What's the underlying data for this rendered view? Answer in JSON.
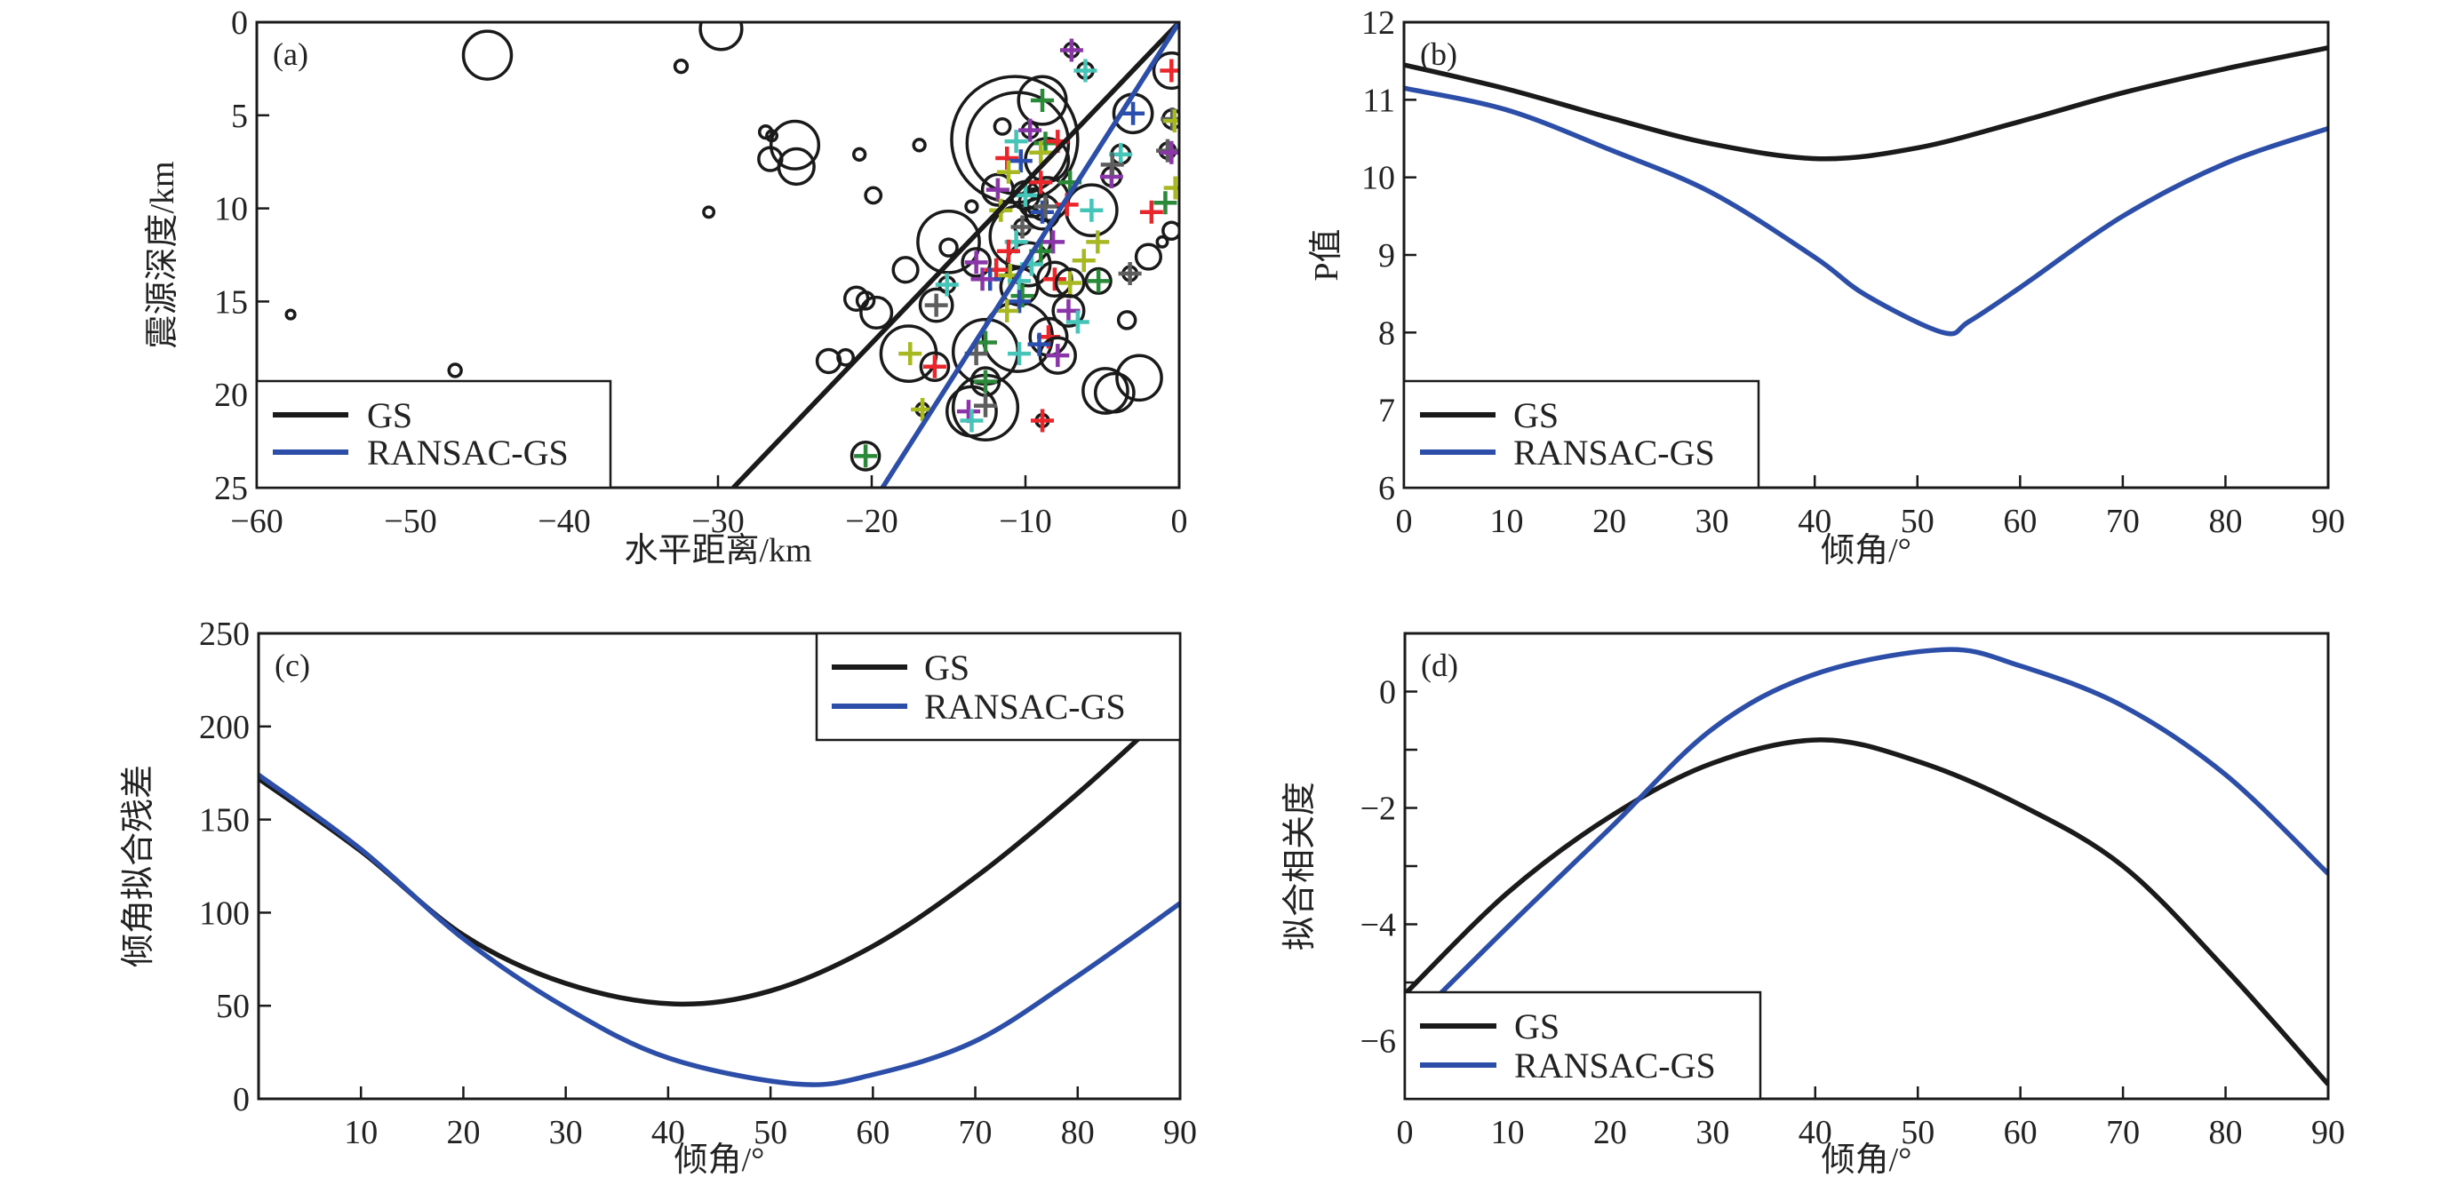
{
  "colors": {
    "GS": "#1a1a1a",
    "RANSAC-GS": "#2c4ea8",
    "cross": {
      "red": "#e8262b",
      "green": "#2a8a3a",
      "blue": "#2b4fb0",
      "purple": "#8a35a8",
      "cyan": "#45c4b8",
      "yellow": "#a8b820",
      "gray": "#5e5e5e"
    }
  },
  "chart_data": [
    {
      "type": "scatter",
      "panel_label": "(a)",
      "xlabel": "水平距离/km",
      "ylabel": "震源深度/km",
      "xlim": [
        -60,
        0
      ],
      "ylim": [
        0,
        25
      ],
      "y_inverted": true,
      "xticks": [
        -60,
        -50,
        -40,
        -30,
        -20,
        -10,
        0
      ],
      "xtick_labels": [
        "−60",
        "−50",
        "−40",
        "−30",
        "−20",
        "−10",
        "0"
      ],
      "yticks": [
        0,
        5,
        10,
        15,
        20,
        25
      ],
      "ytick_labels": [
        "0",
        "5",
        "10",
        "15",
        "20",
        "25"
      ],
      "legend": {
        "position": "bottom-left",
        "entries": [
          "GS",
          "RANSAC-GS"
        ]
      },
      "series": [
        {
          "name": "GS",
          "type": "line",
          "x": [
            0,
            -29.0
          ],
          "y": [
            0,
            25
          ]
        },
        {
          "name": "RANSAC-GS",
          "type": "line",
          "x": [
            0,
            -19.3
          ],
          "y": [
            0,
            25
          ]
        }
      ],
      "events_fields": [
        "x_km",
        "depth_km",
        "circle_radius_km",
        "cross_color"
      ],
      "events": [
        [
          -45.0,
          1.77,
          1.56,
          ""
        ],
        [
          -29.8,
          0.35,
          1.35,
          ""
        ],
        [
          -32.4,
          2.37,
          0.4,
          ""
        ],
        [
          -57.8,
          15.7,
          0.28,
          ""
        ],
        [
          -47.1,
          18.7,
          0.4,
          ""
        ],
        [
          -26.9,
          5.9,
          0.4,
          ""
        ],
        [
          -26.5,
          6.1,
          0.33,
          ""
        ],
        [
          -25.0,
          6.6,
          1.55,
          ""
        ],
        [
          -26.6,
          7.35,
          0.75,
          ""
        ],
        [
          -24.9,
          7.75,
          1.15,
          ""
        ],
        [
          -20.8,
          7.1,
          0.37,
          ""
        ],
        [
          -16.9,
          6.6,
          0.37,
          ""
        ],
        [
          -19.9,
          9.3,
          0.5,
          ""
        ],
        [
          -30.6,
          10.2,
          0.33,
          ""
        ],
        [
          -13.5,
          9.9,
          0.37,
          ""
        ],
        [
          -15.0,
          11.8,
          2.0,
          ""
        ],
        [
          -15.0,
          12.1,
          0.55,
          ""
        ],
        [
          -17.8,
          13.3,
          0.8,
          ""
        ],
        [
          -21.0,
          14.85,
          0.75,
          ""
        ],
        [
          -20.4,
          14.95,
          0.55,
          ""
        ],
        [
          -19.7,
          15.6,
          1.0,
          ""
        ],
        [
          -22.8,
          18.2,
          0.75,
          ""
        ],
        [
          -21.7,
          18.0,
          0.5,
          ""
        ],
        [
          -17.6,
          17.8,
          1.8,
          ""
        ],
        [
          -3.4,
          16.0,
          0.55,
          ""
        ],
        [
          -2.0,
          12.6,
          0.8,
          ""
        ],
        [
          -1.1,
          11.8,
          0.33,
          ""
        ],
        [
          -0.5,
          11.2,
          0.55,
          ""
        ],
        [
          -4.8,
          19.8,
          1.45,
          ""
        ],
        [
          -2.6,
          19.1,
          1.45,
          ""
        ],
        [
          -4.2,
          19.9,
          1.25,
          ""
        ],
        [
          -10.7,
          6.3,
          4.1,
          ""
        ],
        [
          -10.5,
          6.5,
          3.3,
          ""
        ],
        [
          -11.5,
          5.6,
          0.5,
          ""
        ],
        [
          -12.6,
          20.7,
          2.1,
          ""
        ],
        [
          -13.5,
          20.9,
          1.6,
          ""
        ],
        [
          -12.6,
          17.7,
          2.1,
          ""
        ],
        [
          -10.5,
          16.9,
          2.25,
          ""
        ],
        [
          -10.4,
          14.2,
          1.2,
          ""
        ],
        [
          -8.6,
          9.5,
          1.4,
          ""
        ],
        [
          -9.5,
          9.7,
          0.9,
          ""
        ],
        [
          -8.6,
          7.4,
          1.4,
          ""
        ],
        [
          -10.3,
          11.5,
          2.0,
          ""
        ],
        [
          -9.8,
          13.0,
          1.4,
          ""
        ],
        [
          -8.9,
          4.2,
          1.55,
          "green"
        ],
        [
          -5.7,
          10.1,
          1.65,
          "cyan"
        ],
        [
          -3.0,
          4.9,
          1.25,
          "blue"
        ],
        [
          -0.5,
          2.6,
          1.15,
          "red"
        ],
        [
          -8.1,
          13.8,
          1.1,
          "red"
        ],
        [
          -7.1,
          14.0,
          0.9,
          "yellow"
        ],
        [
          -5.25,
          13.9,
          0.8,
          "green"
        ],
        [
          -7.2,
          15.5,
          1.0,
          "purple"
        ],
        [
          -8.5,
          16.9,
          1.2,
          "red"
        ],
        [
          -7.9,
          17.9,
          1.15,
          "purple"
        ],
        [
          -15.8,
          15.2,
          1.05,
          "gray"
        ],
        [
          -15.9,
          18.5,
          0.9,
          "red"
        ],
        [
          -20.4,
          23.3,
          0.9,
          "green"
        ],
        [
          -7.0,
          1.5,
          0.45,
          "purple"
        ],
        [
          -6.1,
          2.6,
          0.5,
          "cyan"
        ],
        [
          -16.7,
          20.8,
          0.4,
          "yellow"
        ],
        [
          -8.9,
          21.4,
          0.4,
          "red"
        ],
        [
          -0.45,
          5.2,
          0.6,
          "gray"
        ],
        [
          -0.75,
          6.9,
          0.5,
          "gray"
        ],
        [
          -3.8,
          7.1,
          0.6,
          "cyan"
        ],
        [
          -4.4,
          8.3,
          0.6,
          "purple"
        ],
        [
          -10.2,
          11.0,
          0.5,
          "gray"
        ],
        [
          -3.2,
          13.5,
          0.45,
          "gray"
        ],
        [
          -12.6,
          19.3,
          0.9,
          "green"
        ],
        [
          -8.9,
          10.2,
          1.1,
          "blue"
        ],
        [
          -11.8,
          9.0,
          1.0,
          "purple"
        ],
        [
          -10.0,
          9.3,
          0.9,
          "cyan"
        ],
        [
          -9.7,
          5.8,
          0.5,
          "purple"
        ],
        [
          -13.2,
          12.9,
          0.9,
          "purple"
        ],
        [
          -15.1,
          14.1,
          0.5,
          "cyan"
        ],
        [
          -0.3,
          5.3,
          0,
          "yellow"
        ],
        [
          -10.6,
          6.4,
          0,
          "cyan"
        ],
        [
          -8.7,
          6.5,
          0,
          "green"
        ],
        [
          -7.9,
          6.4,
          0,
          "red"
        ],
        [
          -9.0,
          7.0,
          0,
          "yellow"
        ],
        [
          -11.2,
          7.3,
          0,
          "red"
        ],
        [
          -10.3,
          7.45,
          0,
          "blue"
        ],
        [
          -4.35,
          7.65,
          0,
          "gray"
        ],
        [
          -0.5,
          7.0,
          0,
          "purple"
        ],
        [
          -11.1,
          8.05,
          0,
          "yellow"
        ],
        [
          -9.0,
          8.6,
          0,
          "red"
        ],
        [
          -7.1,
          8.6,
          0,
          "green"
        ],
        [
          -7.3,
          9.8,
          0,
          "red"
        ],
        [
          -8.7,
          9.9,
          0,
          "gray"
        ],
        [
          -11.6,
          10.1,
          0,
          "yellow"
        ],
        [
          -1.8,
          10.2,
          0,
          "red"
        ],
        [
          -0.9,
          9.7,
          0,
          "green"
        ],
        [
          -0.25,
          8.9,
          0,
          "yellow"
        ],
        [
          -8.2,
          11.8,
          0,
          "purple"
        ],
        [
          -5.3,
          11.8,
          0,
          "yellow"
        ],
        [
          -10.6,
          11.8,
          0,
          "cyan"
        ],
        [
          -11.1,
          12.3,
          0,
          "red"
        ],
        [
          -9.0,
          12.3,
          0,
          "green"
        ],
        [
          -6.2,
          12.8,
          0,
          "yellow"
        ],
        [
          -11.9,
          13.3,
          0,
          "red"
        ],
        [
          -12.3,
          13.8,
          0,
          "blue"
        ],
        [
          -12.8,
          13.8,
          0,
          "purple"
        ],
        [
          -9.6,
          13.0,
          0,
          "cyan"
        ],
        [
          -11.0,
          13.6,
          0,
          "yellow"
        ],
        [
          -10.4,
          13.9,
          0,
          "cyan"
        ],
        [
          -10.2,
          14.7,
          0,
          "green"
        ],
        [
          -10.4,
          15.0,
          0,
          "blue"
        ],
        [
          -11.2,
          15.5,
          0,
          "yellow"
        ],
        [
          -6.6,
          16.1,
          0,
          "cyan"
        ],
        [
          -9.1,
          17.3,
          0,
          "blue"
        ],
        [
          -12.6,
          17.2,
          0,
          "green"
        ],
        [
          -13.2,
          17.8,
          0,
          "gray"
        ],
        [
          -10.4,
          17.8,
          0,
          "cyan"
        ],
        [
          -17.5,
          17.8,
          0,
          "yellow"
        ],
        [
          -12.6,
          20.6,
          0,
          "gray"
        ],
        [
          -13.7,
          20.9,
          0,
          "purple"
        ],
        [
          -13.5,
          21.4,
          0,
          "cyan"
        ]
      ]
    },
    {
      "type": "line",
      "panel_label": "(b)",
      "xlabel": "倾角/°",
      "ylabel": "P值",
      "xlim": [
        0,
        90
      ],
      "ylim": [
        6,
        12
      ],
      "xticks": [
        0,
        10,
        20,
        30,
        40,
        50,
        60,
        70,
        80,
        90
      ],
      "xtick_labels": [
        "0",
        "10",
        "20",
        "30",
        "40",
        "50",
        "60",
        "70",
        "80",
        "90"
      ],
      "yticks": [
        6,
        7,
        8,
        9,
        10,
        11,
        12
      ],
      "ytick_labels": [
        "6",
        "7",
        "8",
        "9",
        "10",
        "11",
        "12"
      ],
      "legend": {
        "position": "bottom-left",
        "entries": [
          "GS",
          "RANSAC-GS"
        ]
      },
      "series": [
        {
          "name": "GS",
          "x": [
            0,
            10,
            20,
            30,
            40.5,
            50,
            60,
            70,
            80,
            90
          ],
          "y": [
            11.45,
            11.14,
            10.77,
            10.43,
            10.24,
            10.38,
            10.72,
            11.09,
            11.4,
            11.67
          ]
        },
        {
          "name": "RANSAC-GS",
          "x": [
            0,
            10,
            20,
            30,
            40,
            45,
            52.5,
            55,
            60,
            70,
            80,
            90
          ],
          "y": [
            11.15,
            10.87,
            10.36,
            9.8,
            8.97,
            8.48,
            8.0,
            8.14,
            8.58,
            9.5,
            10.18,
            10.63
          ]
        }
      ]
    },
    {
      "type": "line",
      "panel_label": "(c)",
      "xlabel": "倾角/°",
      "ylabel": "倾角拟合残差",
      "xlim": [
        0,
        90
      ],
      "ylim": [
        0,
        250
      ],
      "xticks": [
        10,
        20,
        30,
        40,
        50,
        60,
        70,
        80,
        90
      ],
      "xtick_labels": [
        "10",
        "20",
        "30",
        "40",
        "50",
        "60",
        "70",
        "80",
        "90"
      ],
      "yticks": [
        0,
        50,
        100,
        150,
        200,
        250
      ],
      "ytick_labels": [
        "0",
        "50",
        "100",
        "150",
        "200",
        "250"
      ],
      "legend": {
        "position": "top-right",
        "entries": [
          "GS",
          "RANSAC-GS"
        ]
      },
      "series": [
        {
          "name": "GS",
          "x": [
            0,
            10,
            20,
            30,
            40.5,
            50,
            60,
            70,
            80,
            90
          ],
          "y": [
            172,
            133,
            88,
            62,
            51,
            58,
            82,
            119,
            164,
            214
          ]
        },
        {
          "name": "RANSAC-GS",
          "x": [
            0,
            10,
            20,
            30,
            40,
            52.5,
            60,
            70,
            80,
            90
          ],
          "y": [
            174,
            134,
            86,
            49,
            22,
            8,
            13,
            31,
            66,
            105
          ]
        }
      ]
    },
    {
      "type": "line",
      "panel_label": "(d)",
      "xlabel": "倾角/°",
      "ylabel": "拟合相关度",
      "xlim": [
        0,
        90
      ],
      "ylim": [
        -7,
        1
      ],
      "xticks": [
        0,
        10,
        20,
        30,
        40,
        50,
        60,
        70,
        80,
        90
      ],
      "xtick_labels": [
        "0",
        "10",
        "20",
        "30",
        "40",
        "50",
        "60",
        "70",
        "80",
        "90"
      ],
      "yticks": [
        -7,
        -6,
        -5,
        -4,
        -3,
        -2,
        -1,
        0,
        1
      ],
      "ytick_labels": [
        "",
        "−6",
        "",
        "−4",
        "",
        "−2",
        "",
        "0",
        ""
      ],
      "legend": {
        "position": "bottom-left",
        "entries": [
          "GS",
          "RANSAC-GS"
        ]
      },
      "series": [
        {
          "name": "GS",
          "x": [
            0,
            10,
            20,
            30,
            40.5,
            50,
            60,
            70,
            80,
            90
          ],
          "y": [
            -5.2,
            -3.46,
            -2.15,
            -1.23,
            -0.83,
            -1.2,
            -1.95,
            -3.0,
            -4.77,
            -6.75
          ]
        },
        {
          "name": "RANSAC-GS",
          "x": [
            0,
            10,
            20,
            30,
            40,
            52.5,
            60,
            70,
            80,
            90
          ],
          "y": [
            -5.8,
            -4.05,
            -2.35,
            -0.64,
            0.3,
            0.72,
            0.44,
            -0.25,
            -1.43,
            -3.13
          ]
        }
      ]
    }
  ]
}
